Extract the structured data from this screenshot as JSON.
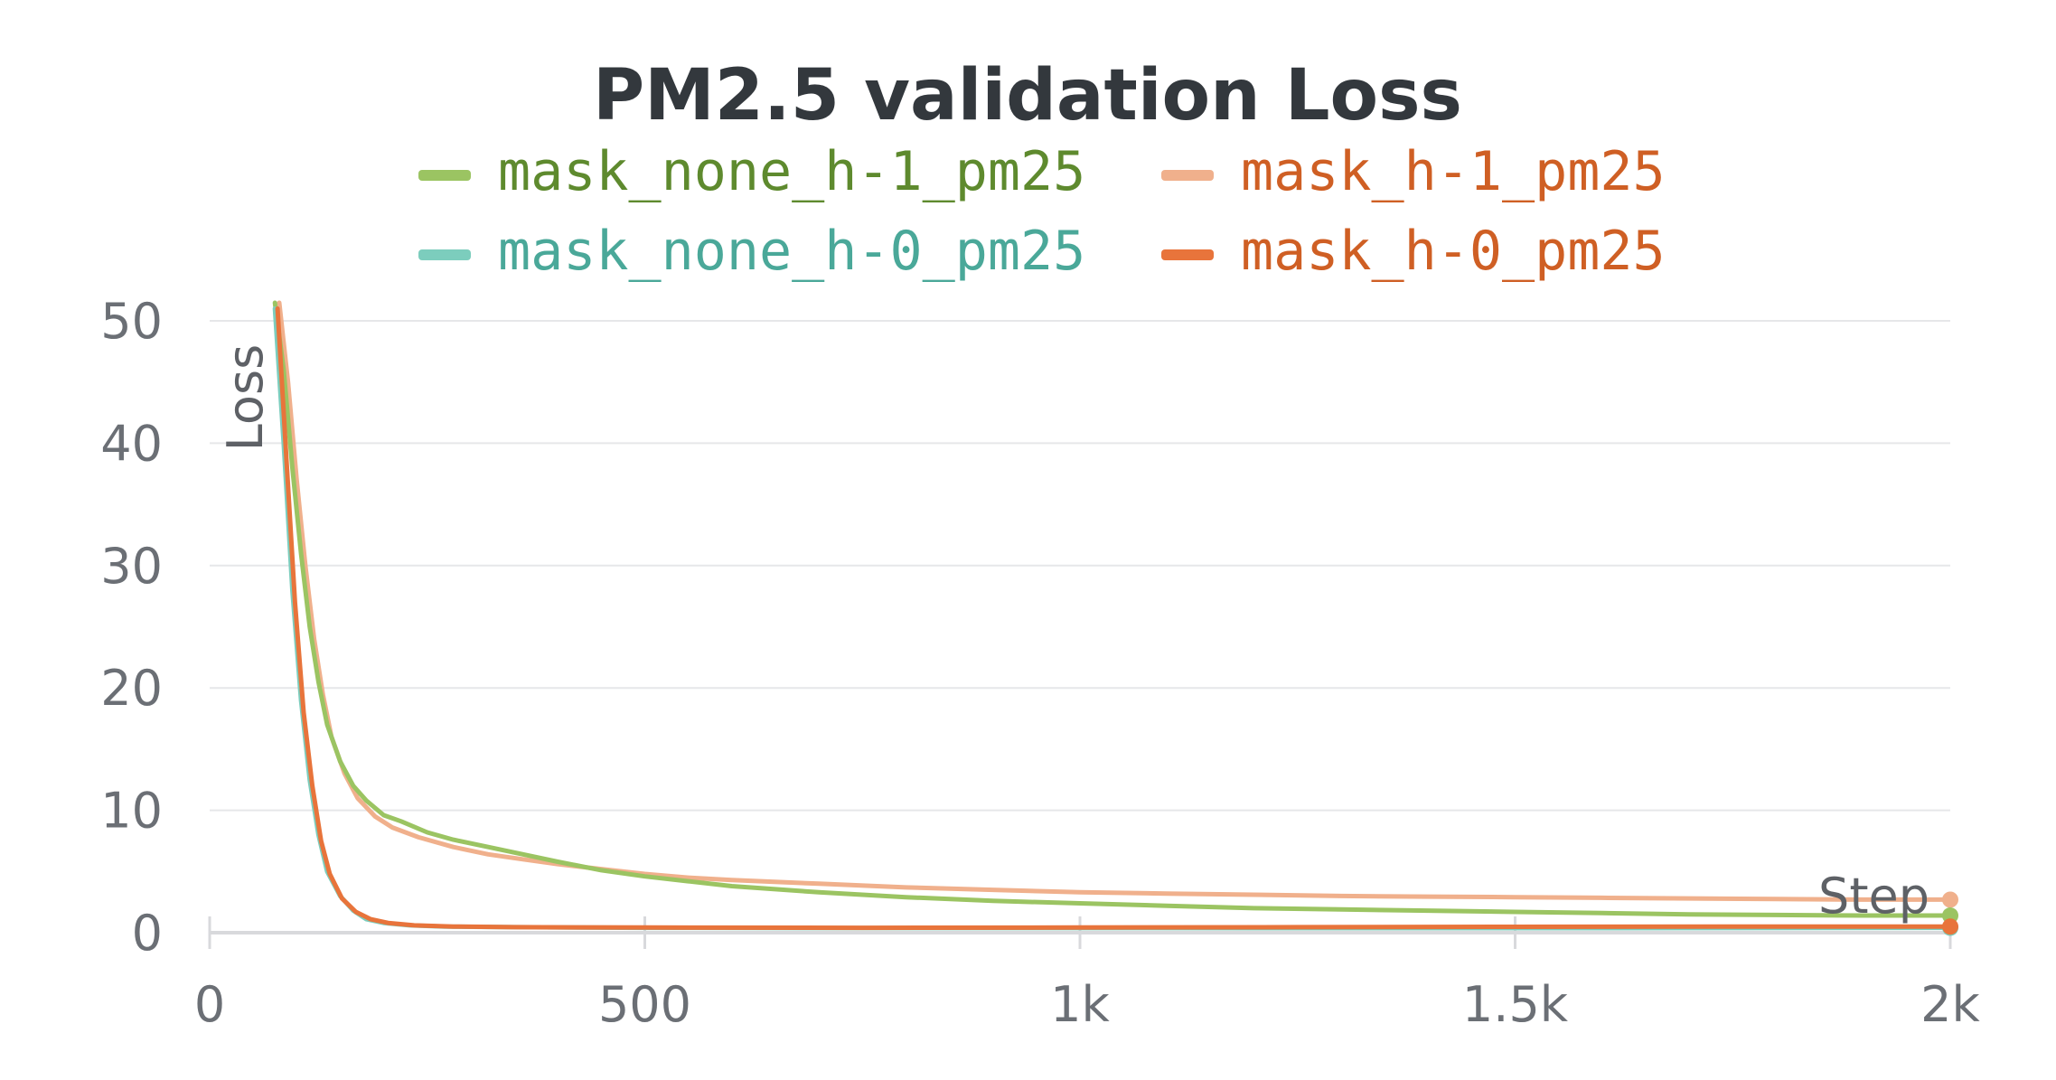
{
  "chart_data": {
    "type": "line",
    "title": "PM2.5 validation Loss",
    "xlabel": "Step",
    "ylabel": "Loss",
    "xlim": [
      0,
      2000
    ],
    "ylim": [
      0,
      50
    ],
    "grid": true,
    "legend_placement": "top-center",
    "x_ticks": [
      {
        "value": 0,
        "label": "0"
      },
      {
        "value": 500,
        "label": "500"
      },
      {
        "value": 1000,
        "label": "1k"
      },
      {
        "value": 1500,
        "label": "1.5k"
      },
      {
        "value": 2000,
        "label": "2k"
      }
    ],
    "y_ticks": [
      {
        "value": 0,
        "label": "0"
      },
      {
        "value": 10,
        "label": "10"
      },
      {
        "value": 20,
        "label": "20"
      },
      {
        "value": 30,
        "label": "30"
      },
      {
        "value": 40,
        "label": "40"
      },
      {
        "value": 50,
        "label": "50"
      }
    ],
    "series": [
      {
        "name": "mask_none_h-1_pm25",
        "color": "#9bc462",
        "label_color": "#5e8a2e",
        "points": [
          [
            75,
            52
          ],
          [
            85,
            46
          ],
          [
            95,
            38
          ],
          [
            105,
            31
          ],
          [
            115,
            25
          ],
          [
            125,
            20.5
          ],
          [
            135,
            17
          ],
          [
            150,
            14
          ],
          [
            165,
            12
          ],
          [
            180,
            10.8
          ],
          [
            200,
            9.6
          ],
          [
            220,
            9.1
          ],
          [
            250,
            8.2
          ],
          [
            280,
            7.6
          ],
          [
            320,
            7.0
          ],
          [
            360,
            6.4
          ],
          [
            400,
            5.8
          ],
          [
            450,
            5.1
          ],
          [
            500,
            4.6
          ],
          [
            550,
            4.2
          ],
          [
            600,
            3.8
          ],
          [
            700,
            3.3
          ],
          [
            800,
            2.9
          ],
          [
            900,
            2.6
          ],
          [
            1000,
            2.4
          ],
          [
            1100,
            2.2
          ],
          [
            1200,
            2.0
          ],
          [
            1300,
            1.9
          ],
          [
            1400,
            1.8
          ],
          [
            1500,
            1.7
          ],
          [
            1600,
            1.6
          ],
          [
            1700,
            1.5
          ],
          [
            1800,
            1.45
          ],
          [
            1900,
            1.4
          ],
          [
            2000,
            1.4
          ]
        ]
      },
      {
        "name": "mask_h-1_pm25",
        "color": "#f0b08c",
        "label_color": "#cf5f24",
        "points": [
          [
            80,
            52
          ],
          [
            90,
            45
          ],
          [
            100,
            37
          ],
          [
            110,
            30
          ],
          [
            120,
            24
          ],
          [
            130,
            19.5
          ],
          [
            140,
            16
          ],
          [
            155,
            13
          ],
          [
            170,
            11
          ],
          [
            190,
            9.5
          ],
          [
            210,
            8.6
          ],
          [
            240,
            7.8
          ],
          [
            280,
            7.0
          ],
          [
            320,
            6.4
          ],
          [
            360,
            6.0
          ],
          [
            400,
            5.6
          ],
          [
            450,
            5.2
          ],
          [
            500,
            4.8
          ],
          [
            550,
            4.5
          ],
          [
            600,
            4.3
          ],
          [
            700,
            4.0
          ],
          [
            800,
            3.7
          ],
          [
            900,
            3.5
          ],
          [
            1000,
            3.3
          ],
          [
            1100,
            3.2
          ],
          [
            1200,
            3.1
          ],
          [
            1300,
            3.0
          ],
          [
            1400,
            2.95
          ],
          [
            1500,
            2.9
          ],
          [
            1600,
            2.85
          ],
          [
            1700,
            2.8
          ],
          [
            1800,
            2.75
          ],
          [
            1900,
            2.7
          ],
          [
            2000,
            2.7
          ]
        ]
      },
      {
        "name": "mask_none_h-0_pm25",
        "color": "#7ccdbd",
        "label_color": "#4aa899",
        "points": [
          [
            75,
            51
          ],
          [
            85,
            40
          ],
          [
            95,
            28
          ],
          [
            105,
            19
          ],
          [
            115,
            12.5
          ],
          [
            125,
            8
          ],
          [
            135,
            5
          ],
          [
            150,
            3
          ],
          [
            165,
            1.8
          ],
          [
            180,
            1.1
          ],
          [
            200,
            0.8
          ],
          [
            230,
            0.6
          ],
          [
            270,
            0.5
          ],
          [
            350,
            0.45
          ],
          [
            500,
            0.4
          ],
          [
            750,
            0.38
          ],
          [
            1000,
            0.38
          ],
          [
            1250,
            0.37
          ],
          [
            1500,
            0.37
          ],
          [
            1750,
            0.38
          ],
          [
            2000,
            0.4
          ]
        ]
      },
      {
        "name": "mask_h-0_pm25",
        "color": "#e8743b",
        "label_color": "#cf5f24",
        "points": [
          [
            78,
            51
          ],
          [
            88,
            39
          ],
          [
            98,
            27
          ],
          [
            108,
            18
          ],
          [
            118,
            12
          ],
          [
            128,
            7.5
          ],
          [
            138,
            4.8
          ],
          [
            152,
            2.8
          ],
          [
            168,
            1.7
          ],
          [
            185,
            1.1
          ],
          [
            205,
            0.8
          ],
          [
            235,
            0.6
          ],
          [
            280,
            0.5
          ],
          [
            350,
            0.45
          ],
          [
            500,
            0.42
          ],
          [
            750,
            0.4
          ],
          [
            1000,
            0.42
          ],
          [
            1250,
            0.45
          ],
          [
            1500,
            0.48
          ],
          [
            1750,
            0.5
          ],
          [
            2000,
            0.5
          ]
        ]
      }
    ]
  }
}
